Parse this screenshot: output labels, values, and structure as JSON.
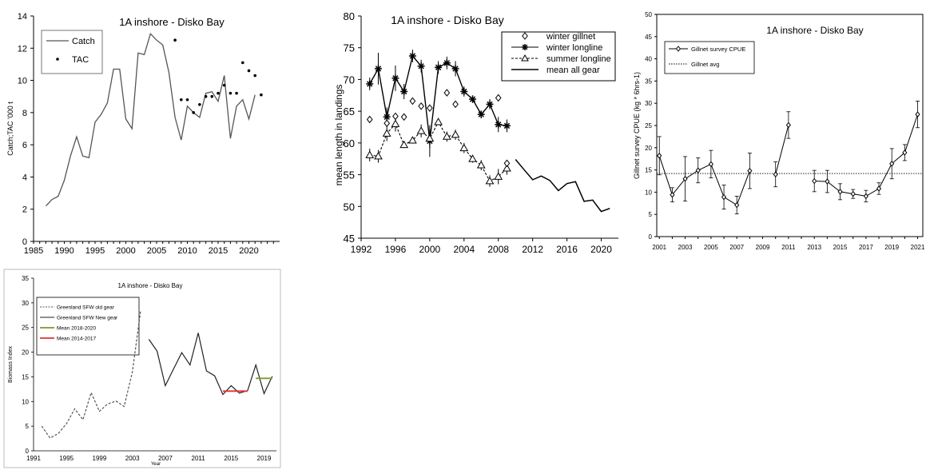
{
  "chart_data": [
    {
      "id": "catch",
      "type": "line",
      "title": "1A inshore - Disko Bay",
      "xlabel": "",
      "ylabel": "Catch;TAC '000 t",
      "xlim": [
        1985,
        2025
      ],
      "ylim": [
        0,
        14
      ],
      "xticks": [
        1985,
        1990,
        1995,
        2000,
        2005,
        2010,
        2015,
        2020
      ],
      "yticks": [
        0,
        2,
        4,
        6,
        8,
        10,
        12,
        14
      ],
      "legend": "top-left",
      "series": [
        {
          "name": "Catch",
          "style": "line",
          "color": "#555555",
          "x": [
            1987,
            1988,
            1989,
            1990,
            1991,
            1992,
            1993,
            1994,
            1995,
            1996,
            1997,
            1998,
            1999,
            2000,
            2001,
            2002,
            2003,
            2004,
            2005,
            2006,
            2007,
            2008,
            2009,
            2010,
            2011,
            2012,
            2013,
            2014,
            2015,
            2016,
            2017,
            2018,
            2019,
            2020,
            2021
          ],
          "y": [
            2.2,
            2.6,
            2.8,
            3.8,
            5.3,
            6.5,
            5.3,
            5.2,
            7.4,
            7.9,
            8.6,
            10.7,
            10.7,
            7.6,
            7.0,
            11.7,
            11.6,
            12.9,
            12.5,
            12.2,
            10.5,
            7.7,
            6.3,
            8.4,
            8.0,
            7.7,
            9.2,
            9.3,
            8.7,
            10.3,
            6.4,
            8.4,
            8.8,
            7.6,
            9.1
          ]
        },
        {
          "name": "TAC",
          "style": "dot",
          "color": "#000000",
          "x": [
            2008,
            2009,
            2010,
            2011,
            2012,
            2013,
            2014,
            2015,
            2016,
            2017,
            2018,
            2019,
            2020,
            2021,
            2022
          ],
          "y": [
            12.5,
            8.8,
            8.8,
            8.0,
            8.5,
            9.0,
            9.0,
            9.2,
            9.7,
            9.2,
            9.2,
            11.1,
            10.6,
            10.3,
            9.1
          ]
        }
      ]
    },
    {
      "id": "length",
      "type": "line",
      "title": "1A inshore - Disko Bay",
      "xlabel": "",
      "ylabel": "mean length in landings",
      "xlim": [
        1992,
        2022
      ],
      "ylim": [
        45,
        80
      ],
      "xticks": [
        1992,
        1996,
        2000,
        2004,
        2008,
        2012,
        2016,
        2020
      ],
      "yticks": [
        45,
        50,
        55,
        60,
        65,
        70,
        75,
        80
      ],
      "legend": "top-right",
      "series": [
        {
          "name": "winter gillnet",
          "marker": "diamond",
          "line": "none",
          "x": [
            1993,
            1995,
            1996,
            1997,
            1998,
            1999,
            2000,
            2002,
            2003,
            2008,
            2009
          ],
          "y": [
            63.7,
            63.1,
            64.2,
            64.1,
            66.6,
            65.8,
            65.5,
            67.9,
            66.1,
            67.1,
            56.8
          ]
        },
        {
          "name": "winter longline",
          "marker": "star",
          "line": "solid",
          "x": [
            1993,
            1994,
            1995,
            1996,
            1997,
            1998,
            1999,
            2000,
            2001,
            2002,
            2003,
            2004,
            2005,
            2006,
            2007,
            2008,
            2009
          ],
          "y": [
            69.3,
            71.7,
            64.1,
            70.2,
            68.1,
            73.7,
            72.1,
            60.3,
            71.9,
            72.6,
            71.7,
            68.1,
            66.9,
            64.5,
            66.1,
            62.9,
            62.7
          ],
          "err": [
            1.0,
            2.5,
            1.5,
            2.0,
            1.2,
            1.0,
            1.0,
            2.5,
            1.0,
            1.0,
            1.2,
            0.8,
            0.6,
            0.6,
            0.8,
            1.2,
            1.0
          ]
        },
        {
          "name": "summer longline",
          "marker": "triangle",
          "line": "dashed",
          "x": [
            1993,
            1994,
            1995,
            1996,
            1997,
            1998,
            1999,
            2000,
            2001,
            2002,
            2003,
            2004,
            2005,
            2006,
            2007,
            2008,
            2009
          ],
          "y": [
            58.1,
            57.9,
            61.5,
            63.0,
            59.7,
            60.4,
            61.9,
            60.7,
            63.3,
            61.0,
            61.3,
            59.2,
            57.5,
            56.5,
            54.0,
            54.7,
            56.0
          ],
          "err": [
            1.0,
            1.0,
            1.2,
            1.2,
            0.5,
            0.5,
            1.0,
            1.5,
            0.5,
            0.8,
            0.8,
            0.8,
            0.6,
            0.8,
            0.9,
            1.2,
            1.0
          ]
        },
        {
          "name": "mean all gear",
          "marker": "none",
          "line": "solid",
          "x": [
            2010,
            2011,
            2012,
            2013,
            2014,
            2015,
            2016,
            2017,
            2018,
            2019,
            2020,
            2021
          ],
          "y": [
            57.4,
            55.8,
            54.2,
            54.8,
            54.1,
            52.5,
            53.6,
            53.9,
            50.8,
            51.0,
            49.2,
            49.7
          ]
        }
      ]
    },
    {
      "id": "cpue",
      "type": "line",
      "title": "1A inshore - Disko Bay",
      "xlabel": "",
      "ylabel": "Gillnet survey CPUE (kg * 6hrs-1)",
      "xlim": [
        2000.8,
        2021.4
      ],
      "ylim": [
        0,
        50
      ],
      "xticks": [
        2001,
        2003,
        2005,
        2007,
        2009,
        2011,
        2013,
        2015,
        2017,
        2019,
        2021
      ],
      "yticks": [
        0,
        5,
        10,
        15,
        20,
        25,
        30,
        35,
        40,
        45,
        50
      ],
      "legend": "top-left",
      "avg": 14.2,
      "series": [
        {
          "name": "Gillnet survey CPUE",
          "marker": "diamond",
          "segments": [
            {
              "x": [
                2001,
                2002,
                2003,
                2004,
                2005,
                2006,
                2007,
                2008
              ],
              "y": [
                18.2,
                9.4,
                13.0,
                14.9,
                16.3,
                8.9,
                7.1,
                14.8
              ],
              "err": [
                4.3,
                1.6,
                5.0,
                2.8,
                3.1,
                2.7,
                2.0,
                4.0
              ]
            },
            {
              "x": [
                2010,
                2011
              ],
              "y": [
                14.0,
                25.1
              ],
              "err": [
                2.8,
                3.0
              ]
            },
            {
              "x": [
                2013,
                2014,
                2015,
                2016,
                2017,
                2018,
                2019,
                2020,
                2021
              ],
              "y": [
                12.5,
                12.4,
                10.1,
                9.6,
                9.1,
                10.8,
                16.4,
                18.9,
                27.5
              ],
              "err": [
                2.4,
                2.5,
                1.8,
                1.0,
                1.3,
                1.3,
                3.4,
                1.8,
                3.0
              ]
            }
          ]
        },
        {
          "name": "Gillnet avg",
          "style": "dotted"
        }
      ]
    },
    {
      "id": "biomass",
      "type": "line",
      "title": "1A inshore - Disko Bay",
      "xlabel": "Year",
      "ylabel": "Biomass Index",
      "xlim": [
        1991,
        2020.5
      ],
      "ylim": [
        0,
        35
      ],
      "xticks": [
        1991,
        1995,
        1999,
        2003,
        2007,
        2011,
        2015,
        2019
      ],
      "yticks": [
        0,
        5,
        10,
        15,
        20,
        25,
        30,
        35
      ],
      "legend": "top-left",
      "series": [
        {
          "name": "Greenland SFW old gear",
          "style": "dashed",
          "color": "#555555",
          "x": [
            1992,
            1993,
            1994,
            1995,
            1996,
            1997,
            1998,
            1999,
            2000,
            2001,
            2002,
            2003,
            2004
          ],
          "y": [
            5.0,
            2.6,
            3.5,
            5.5,
            8.5,
            6.3,
            11.8,
            8.0,
            9.5,
            10.1,
            9.0,
            16.0,
            28.4
          ]
        },
        {
          "name": "Greenland SFW New gear",
          "style": "solid",
          "color": "#222222",
          "x": [
            2005,
            2006,
            2007,
            2008,
            2009,
            2010,
            2011,
            2012,
            2013,
            2014,
            2015,
            2016,
            2017,
            2018,
            2019,
            2020
          ],
          "y": [
            22.6,
            20.2,
            13.2,
            16.6,
            19.9,
            17.4,
            23.9,
            16.2,
            15.2,
            11.4,
            13.2,
            11.7,
            12.2,
            17.4,
            11.6,
            15.1
          ]
        },
        {
          "name": "Mean 2018-2020",
          "style": "solid",
          "color": "#7a9a2e",
          "x": [
            2018,
            2020
          ],
          "y": [
            14.7,
            14.7
          ]
        },
        {
          "name": "Mean 2014-2017",
          "style": "solid",
          "color": "#e03030",
          "x": [
            2014,
            2017
          ],
          "y": [
            12.1,
            12.1
          ]
        }
      ]
    }
  ]
}
